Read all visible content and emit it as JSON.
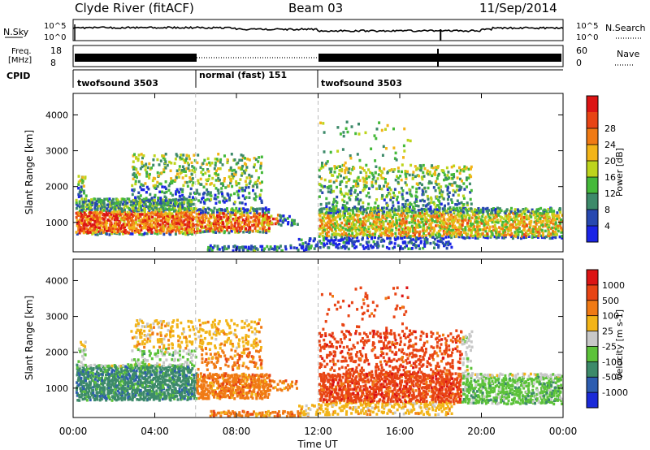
{
  "header": {
    "station": "Clyde River (fitACF)",
    "beam": "Beam 03",
    "date": "11/Sep/2014"
  },
  "noise_panel": {
    "left_label": "N.Sky",
    "left_ticks": [
      "10^5",
      "10^0"
    ],
    "right_ticks": [
      "10^5",
      "10^0"
    ],
    "right_label": "N.Search"
  },
  "freq_panel": {
    "label_line1": "Freq.",
    "label_line2": "[MHz]",
    "left_ticks": [
      "18",
      "8"
    ],
    "right_ticks": [
      "60",
      "0"
    ],
    "right_label": "Nave"
  },
  "cpid": {
    "label": "CPID",
    "segments": [
      {
        "start": 0,
        "end": 6,
        "name": "twofsound 3503"
      },
      {
        "start": 6,
        "end": 12,
        "name": "normal (fast) 151"
      },
      {
        "start": 12,
        "end": 24,
        "name": "twofsound 3503"
      }
    ]
  },
  "time_axis": {
    "label": "Time UT",
    "ticks": [
      "00:00",
      "04:00",
      "08:00",
      "12:00",
      "16:00",
      "20:00",
      "00:00"
    ],
    "range": [
      0,
      24
    ]
  },
  "chart_data": [
    {
      "type": "heatmap",
      "name": "power",
      "ylabel": "Slant Range [km]",
      "yticks": [
        "1000",
        "2000",
        "3000",
        "4000"
      ],
      "ylim": [
        180,
        4600
      ],
      "xlim": [
        0,
        24
      ],
      "colorbar": {
        "label": "Power [dB]",
        "ticks": [
          "4",
          "8",
          "12",
          "16",
          "20",
          "24",
          "28"
        ],
        "colors": [
          "#1a24e6",
          "#2748b0",
          "#3d8a6a",
          "#45b93a",
          "#bdd41c",
          "#f2b418",
          "#f07a14",
          "#e84414",
          "#dc1414"
        ]
      }
    },
    {
      "type": "heatmap",
      "name": "velocity",
      "ylabel": "Slant Range [km]",
      "yticks": [
        "1000",
        "2000",
        "3000",
        "4000"
      ],
      "ylim": [
        180,
        4600
      ],
      "xlim": [
        0,
        24
      ],
      "colorbar": {
        "label": "Velocity [m s-1]",
        "ticks": [
          "1000",
          "500",
          "100",
          "25",
          "-25",
          "-100",
          "-500",
          "-1000"
        ],
        "colors": [
          "#1a2ad8",
          "#2d5db0",
          "#3d8a6a",
          "#5cc23a",
          "#c8c8c8",
          "#f2b418",
          "#f07a14",
          "#e84414",
          "#dc1414"
        ]
      }
    }
  ]
}
